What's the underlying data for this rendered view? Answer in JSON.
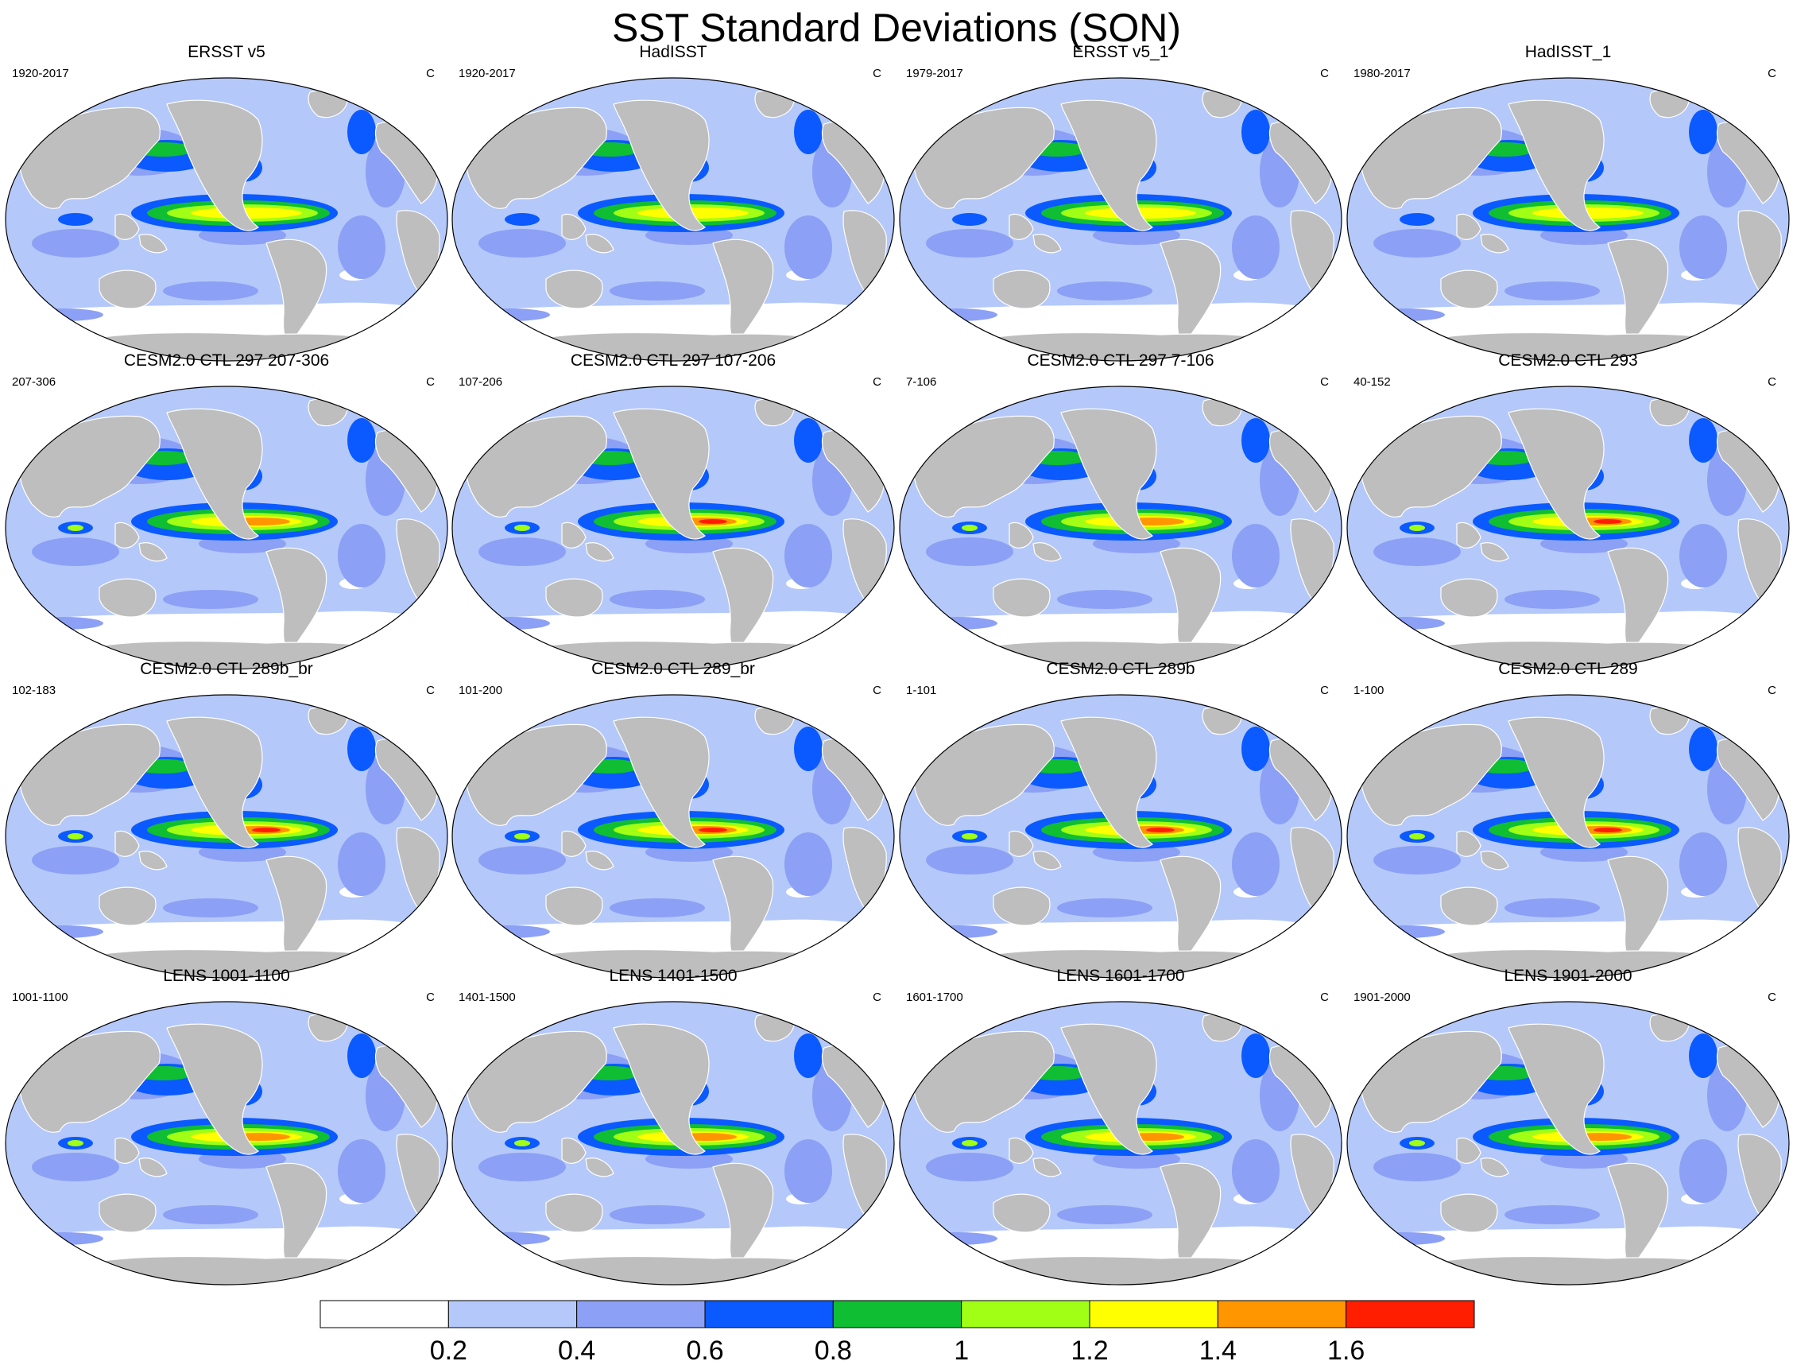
{
  "title": "SST Standard Deviations (SON)",
  "panels": [
    {
      "title": "ERSST v5",
      "left": "1920-2017",
      "right": "C",
      "peak": 0
    },
    {
      "title": "HadISST",
      "left": "1920-2017",
      "right": "C",
      "peak": 0
    },
    {
      "title": "ERSST v5_1",
      "left": "1979-2017",
      "right": "C",
      "peak": 0
    },
    {
      "title": "HadISST_1",
      "left": "1980-2017",
      "right": "C",
      "peak": 0
    },
    {
      "title": "CESM2.0 CTL 297 207-306",
      "left": "207-306",
      "right": "C",
      "peak": 1
    },
    {
      "title": "CESM2.0 CTL 297 107-206",
      "left": "107-206",
      "right": "C",
      "peak": 2
    },
    {
      "title": "CESM2.0 CTL 297 7-106",
      "left": "7-106",
      "right": "C",
      "peak": 1
    },
    {
      "title": "CESM2.0 CTL 293",
      "left": "40-152",
      "right": "C",
      "peak": 2
    },
    {
      "title": "CESM2.0 CTL 289b_br",
      "left": "102-183",
      "right": "C",
      "peak": 2
    },
    {
      "title": "CESM2.0 CTL 289_br",
      "left": "101-200",
      "right": "C",
      "peak": 2
    },
    {
      "title": "CESM2.0 CTL 289b",
      "left": "1-101",
      "right": "C",
      "peak": 2
    },
    {
      "title": "CESM2.0 CTL 289",
      "left": "1-100",
      "right": "C",
      "peak": 2
    },
    {
      "title": "LENS 1001-1100",
      "left": "1001-1100",
      "right": "C",
      "peak": 1
    },
    {
      "title": "LENS 1401-1500",
      "left": "1401-1500",
      "right": "C",
      "peak": 1
    },
    {
      "title": "LENS 1601-1700",
      "left": "1601-1700",
      "right": "C",
      "peak": 1
    },
    {
      "title": "LENS 1901-2000",
      "left": "1901-2000",
      "right": "C",
      "peak": 1
    }
  ],
  "colorbar": {
    "colors": [
      "#ffffff",
      "#b4c8fa",
      "#8ca0f5",
      "#0a5aff",
      "#0fbe32",
      "#a0ff14",
      "#ffff00",
      "#ff9600",
      "#ff1e00"
    ],
    "labels": [
      "0.2",
      "0.4",
      "0.6",
      "0.8",
      "1",
      "1.2",
      "1.4",
      "1.6"
    ]
  },
  "land_color": "#bebebe"
}
